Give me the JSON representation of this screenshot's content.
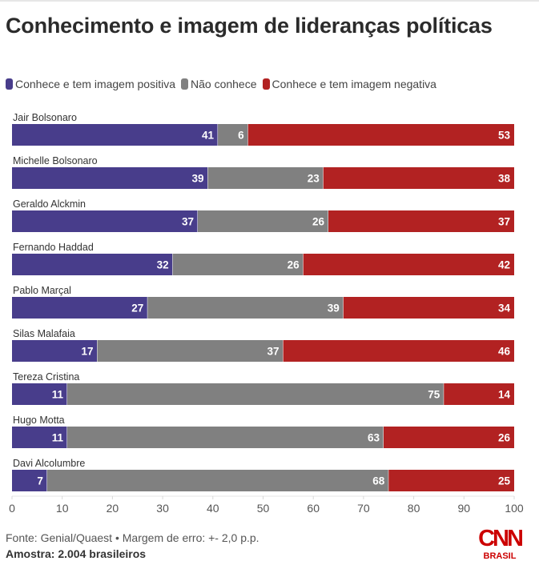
{
  "title": "Conhecimento e imagem de lideranças políticas",
  "legend": [
    {
      "label": "Conhece e tem imagem positiva",
      "color": "#483d8b"
    },
    {
      "label": "Não conhece",
      "color": "#808080"
    },
    {
      "label": "Conhece e tem imagem negativa",
      "color": "#b22222"
    }
  ],
  "footer": {
    "source": "Fonte: Genial/Quaest • Margem de erro: +- 2,0 p.p.",
    "sample": "Amostra: 2.004 brasileiros"
  },
  "logo": {
    "brand": "CNN",
    "sub": "BRASIL",
    "color": "#cc0000"
  },
  "chart_data": {
    "type": "bar",
    "orientation": "horizontal",
    "stacked": true,
    "title": "Conhecimento e imagem de lideranças políticas",
    "xlabel": "",
    "ylabel": "",
    "xlim": [
      0,
      100
    ],
    "xticks": [
      0,
      10,
      20,
      30,
      40,
      50,
      60,
      70,
      80,
      90,
      100
    ],
    "grid": false,
    "legend_position": "top-left",
    "categories": [
      "Jair Bolsonaro",
      "Michelle Bolsonaro",
      "Geraldo Alckmin",
      "Fernando Haddad",
      "Pablo Marçal",
      "Silas Malafaia",
      "Tereza Cristina",
      "Hugo Motta",
      "Davi Alcolumbre"
    ],
    "series": [
      {
        "name": "Conhece e tem imagem positiva",
        "color": "#483d8b",
        "values": [
          41,
          39,
          37,
          32,
          27,
          17,
          11,
          11,
          7
        ]
      },
      {
        "name": "Não conhece",
        "color": "#808080",
        "values": [
          6,
          23,
          26,
          26,
          39,
          37,
          75,
          63,
          68
        ]
      },
      {
        "name": "Conhece e tem imagem negativa",
        "color": "#b22222",
        "values": [
          53,
          38,
          37,
          42,
          34,
          46,
          14,
          26,
          25
        ]
      }
    ]
  }
}
